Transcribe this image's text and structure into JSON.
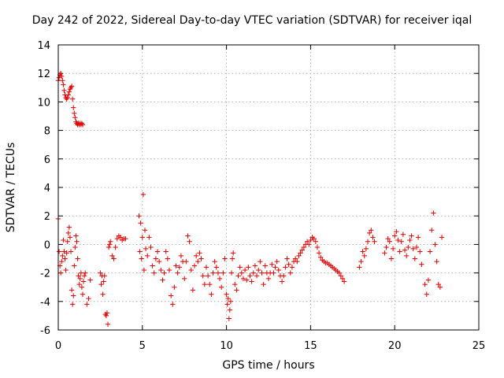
{
  "chart_data": {
    "type": "scatter",
    "title": "Day 242 of 2022, Sidereal Day-to-day VTEC variation (SDTVAR) for receiver iqal",
    "xlabel": "GPS time / hours",
    "ylabel": "SDTVAR / TECUs",
    "xlim": [
      0,
      25
    ],
    "ylim": [
      -6,
      14
    ],
    "xticks": [
      0,
      5,
      10,
      15,
      20,
      25
    ],
    "yticks": [
      -6,
      -4,
      -2,
      0,
      2,
      4,
      6,
      8,
      10,
      12,
      14
    ],
    "xtick_labels": [
      "0",
      "5",
      "10",
      "15",
      "20",
      "25"
    ],
    "ytick_labels": [
      "-6",
      "-4",
      "-2",
      "0",
      "2",
      "4",
      "6",
      "8",
      "10",
      "12",
      "14"
    ],
    "grid": true,
    "marker": "+",
    "color": "#e00000",
    "series": [
      {
        "name": "SDTVAR",
        "x": [
          0.0,
          0.05,
          0.1,
          0.15,
          0.2,
          0.25,
          0.3,
          0.35,
          0.4,
          0.45,
          0.5,
          0.55,
          0.6,
          0.65,
          0.7,
          0.75,
          0.8,
          0.85,
          0.9,
          0.95,
          1.0,
          1.05,
          1.1,
          1.15,
          1.2,
          1.25,
          1.3,
          1.35,
          1.4,
          1.45,
          0.0,
          0.05,
          0.1,
          0.15,
          0.2,
          0.25,
          0.3,
          0.35,
          0.4,
          0.45,
          0.5,
          0.55,
          0.6,
          0.65,
          0.7,
          0.75,
          0.8,
          0.85,
          0.9,
          0.95,
          1.0,
          1.05,
          1.1,
          1.15,
          1.2,
          1.25,
          1.3,
          1.35,
          1.4,
          1.45,
          1.5,
          1.55,
          1.6,
          1.7,
          1.8,
          1.9,
          2.5,
          2.55,
          2.6,
          2.65,
          2.7,
          2.75,
          2.8,
          2.85,
          2.9,
          2.95,
          3.0,
          3.05,
          3.1,
          3.2,
          3.3,
          3.4,
          3.5,
          3.6,
          3.7,
          3.8,
          3.9,
          4.0,
          4.8,
          4.85,
          4.9,
          4.95,
          5.0,
          5.05,
          5.1,
          5.15,
          5.2,
          5.3,
          5.4,
          5.5,
          5.6,
          5.7,
          5.8,
          5.9,
          6.0,
          6.1,
          6.2,
          6.3,
          6.4,
          6.5,
          6.6,
          6.7,
          6.8,
          6.9,
          7.0,
          7.1,
          7.2,
          7.3,
          7.4,
          7.5,
          7.6,
          7.7,
          7.8,
          7.9,
          8.0,
          8.1,
          8.2,
          8.3,
          8.4,
          8.5,
          8.6,
          8.7,
          8.8,
          8.9,
          9.0,
          9.1,
          9.2,
          9.3,
          9.4,
          9.5,
          9.6,
          9.7,
          9.8,
          9.9,
          10.0,
          10.05,
          10.1,
          10.15,
          10.2,
          10.25,
          10.3,
          10.35,
          10.4,
          10.5,
          10.6,
          10.7,
          10.8,
          10.9,
          11.0,
          11.1,
          11.2,
          11.3,
          11.4,
          11.5,
          11.6,
          11.7,
          11.8,
          11.9,
          12.0,
          12.1,
          12.2,
          12.3,
          12.4,
          12.5,
          12.6,
          12.7,
          12.8,
          12.9,
          13.0,
          13.1,
          13.2,
          13.3,
          13.4,
          13.5,
          13.6,
          13.7,
          13.8,
          13.9,
          14.0,
          14.1,
          14.2,
          14.3,
          14.4,
          14.5,
          14.6,
          14.7,
          14.8,
          14.9,
          15.0,
          15.1,
          15.2,
          15.3,
          15.4,
          15.5,
          15.6,
          15.7,
          15.8,
          15.9,
          16.0,
          16.1,
          16.2,
          16.3,
          16.4,
          16.5,
          16.6,
          16.7,
          16.8,
          16.9,
          17.0,
          17.9,
          18.0,
          18.1,
          18.2,
          18.3,
          18.4,
          18.5,
          18.6,
          18.7,
          18.8,
          19.4,
          19.5,
          19.6,
          19.7,
          19.8,
          19.9,
          20.0,
          20.1,
          20.2,
          20.3,
          20.4,
          20.5,
          20.6,
          20.7,
          20.8,
          20.9,
          21.0,
          21.1,
          21.2,
          21.3,
          21.4,
          21.5,
          21.6,
          21.8,
          21.9,
          22.0,
          22.1,
          22.2,
          22.3,
          22.4,
          22.5,
          22.6,
          22.7,
          22.8
        ],
        "y": [
          11.5,
          11.7,
          11.9,
          12.0,
          11.8,
          11.5,
          11.2,
          10.8,
          10.5,
          10.3,
          10.2,
          10.3,
          10.5,
          10.7,
          10.9,
          11.0,
          11.1,
          10.2,
          9.6,
          9.2,
          8.9,
          8.6,
          8.5,
          8.4,
          8.5,
          8.4,
          8.5,
          8.4,
          8.5,
          8.4,
          1.8,
          -0.5,
          -1.5,
          -2.0,
          -1.2,
          -0.8,
          0.3,
          -0.5,
          -1.0,
          -1.8,
          -0.6,
          0.2,
          0.8,
          1.2,
          0.5,
          -0.5,
          -3.2,
          -4.2,
          -3.6,
          -1.5,
          -0.2,
          0.6,
          0.2,
          -1.0,
          -2.2,
          -2.8,
          -2.4,
          -2.0,
          -3.0,
          -3.5,
          -2.6,
          -2.2,
          -2.0,
          -4.2,
          -3.8,
          -2.5,
          -2.0,
          -2.8,
          -2.2,
          -3.5,
          -2.6,
          -2.2,
          -4.9,
          -5.0,
          -4.8,
          -5.6,
          -0.2,
          0.0,
          0.2,
          -0.8,
          -1.0,
          -0.2,
          0.4,
          0.6,
          0.5,
          0.3,
          0.4,
          0.4,
          2.0,
          -0.5,
          1.5,
          -1.0,
          0.5,
          3.5,
          -1.8,
          1.0,
          -0.3,
          -0.8,
          0.5,
          -0.2,
          -1.5,
          -2.0,
          -1.0,
          -0.5,
          -1.2,
          -1.8,
          -2.5,
          -2.0,
          -0.5,
          -1.0,
          -1.8,
          -3.6,
          -4.2,
          -3.0,
          -1.5,
          -2.0,
          -1.6,
          -0.8,
          -1.2,
          -2.4,
          -1.2,
          0.6,
          0.2,
          -1.8,
          -3.2,
          -1.5,
          -0.8,
          -1.2,
          -0.6,
          -1.0,
          -2.2,
          -2.8,
          -1.6,
          -2.2,
          -2.8,
          -3.5,
          -2.0,
          -1.2,
          -1.6,
          -2.0,
          -2.4,
          -3.0,
          -2.0,
          -1.0,
          -3.5,
          -4.2,
          -3.8,
          -5.2,
          -4.6,
          -4.0,
          -2.0,
          -1.0,
          -0.6,
          -2.8,
          -3.2,
          -2.2,
          -1.6,
          -2.0,
          -2.4,
          -1.8,
          -2.5,
          -1.6,
          -2.2,
          -2.6,
          -2.0,
          -1.5,
          -2.2,
          -1.8,
          -1.2,
          -2.0,
          -2.8,
          -1.5,
          -2.0,
          -2.4,
          -2.0,
          -1.4,
          -2.0,
          -1.6,
          -1.2,
          -1.8,
          -2.2,
          -2.6,
          -2.2,
          -1.6,
          -1.0,
          -1.4,
          -2.0,
          -1.6,
          -1.2,
          -1.0,
          -1.2,
          -0.8,
          -0.6,
          -0.4,
          -0.2,
          0.0,
          0.2,
          0.0,
          0.3,
          0.5,
          0.4,
          0.2,
          -0.2,
          -0.6,
          -0.9,
          -1.1,
          -1.2,
          -1.3,
          -1.3,
          -1.4,
          -1.5,
          -1.6,
          -1.7,
          -1.8,
          -1.9,
          -2.0,
          -2.2,
          -2.4,
          -2.6,
          -1.6,
          -1.2,
          -0.5,
          -0.8,
          -0.3,
          0.2,
          0.8,
          1.0,
          0.5,
          0.2,
          -0.6,
          -0.2,
          0.4,
          0.2,
          -1.0,
          -0.3,
          0.6,
          0.9,
          0.3,
          -0.5,
          0.2,
          0.7,
          -0.4,
          -0.8,
          -0.2,
          0.3,
          0.6,
          -0.3,
          -1.0,
          -0.2,
          0.5,
          -0.5,
          -1.4,
          -2.8,
          -3.5,
          -2.5,
          -0.5,
          1.0,
          2.2,
          0.0,
          -1.2,
          -2.8,
          -3.0,
          0.5
        ]
      }
    ]
  }
}
